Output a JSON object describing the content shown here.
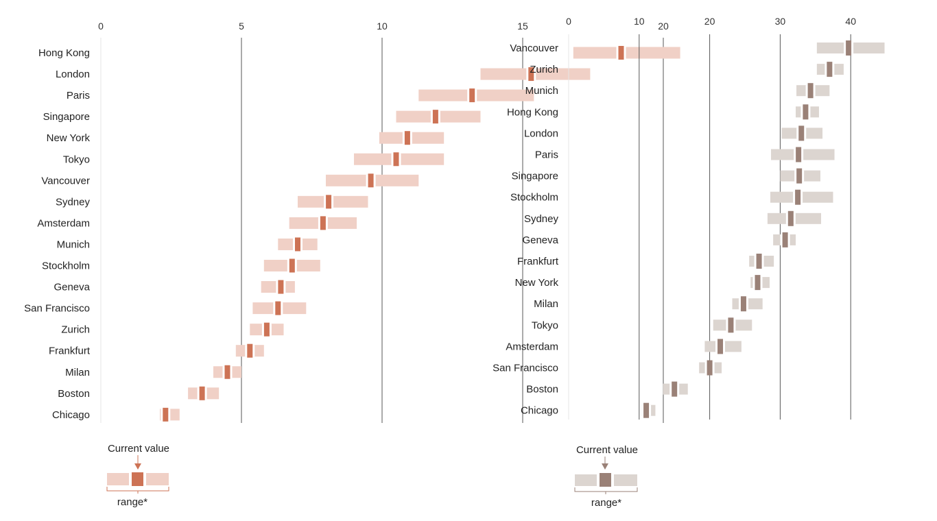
{
  "chart_data": [
    {
      "type": "range",
      "x_ticks": [
        0,
        5,
        10,
        15,
        20
      ],
      "xlim": [
        0,
        21
      ],
      "grid": true,
      "colors": {
        "range": "#f0d0c6",
        "current": "#cd7355"
      },
      "categories": [
        "Hong Kong",
        "London",
        "Paris",
        "Singapore",
        "New York",
        "Tokyo",
        "Vancouver",
        "Sydney",
        "Amsterdam",
        "Munich",
        "Stockholm",
        "Geneva",
        "San Francisco",
        "Zurich",
        "Frankfurt",
        "Milan",
        "Boston",
        "Chicago"
      ],
      "low": [
        16.8,
        13.5,
        11.3,
        10.5,
        9.9,
        9.0,
        8.0,
        7.0,
        6.7,
        6.3,
        5.8,
        5.7,
        5.4,
        5.3,
        4.8,
        4.0,
        3.1,
        2.1
      ],
      "high": [
        20.6,
        17.4,
        15.4,
        13.5,
        12.2,
        12.2,
        11.3,
        9.5,
        9.1,
        7.7,
        7.8,
        6.9,
        7.3,
        6.5,
        5.8,
        5.0,
        4.2,
        2.8
      ],
      "current": [
        18.5,
        15.3,
        13.2,
        11.9,
        10.9,
        10.5,
        9.6,
        8.1,
        7.9,
        7.0,
        6.8,
        6.4,
        6.3,
        5.9,
        5.3,
        4.5,
        3.6,
        2.3
      ],
      "legend": {
        "current_label": "Current value",
        "range_label": "range*"
      }
    },
    {
      "type": "range",
      "x_ticks": [
        0,
        10,
        20,
        30,
        40
      ],
      "xlim": [
        0,
        45
      ],
      "grid": true,
      "colors": {
        "range": "#dcd5d0",
        "current": "#9a8177"
      },
      "categories": [
        "Vancouver",
        "Zurich",
        "Munich",
        "Hong Kong",
        "London",
        "Paris",
        "Singapore",
        "Stockholm",
        "Sydney",
        "Geneva",
        "Frankfurt",
        "New York",
        "Milan",
        "Tokyo",
        "Amsterdam",
        "San Francisco",
        "Boston",
        "Chicago"
      ],
      "low": [
        35.2,
        35.2,
        32.3,
        32.2,
        30.2,
        28.7,
        30.0,
        28.6,
        28.2,
        29.0,
        25.6,
        25.8,
        23.2,
        20.5,
        19.3,
        18.5,
        13.4,
        10.3
      ],
      "high": [
        44.8,
        39.0,
        37.0,
        35.5,
        36.0,
        37.7,
        35.7,
        37.5,
        35.8,
        32.2,
        29.1,
        28.5,
        27.5,
        26.0,
        24.5,
        21.7,
        16.9,
        12.3
      ],
      "current": [
        39.7,
        37.0,
        34.3,
        33.6,
        33.0,
        32.6,
        32.7,
        32.5,
        31.5,
        30.7,
        27.0,
        26.8,
        24.8,
        23.0,
        21.5,
        20.0,
        15.0,
        11.0
      ],
      "legend": {
        "current_label": "Current value",
        "range_label": "range*"
      }
    }
  ]
}
